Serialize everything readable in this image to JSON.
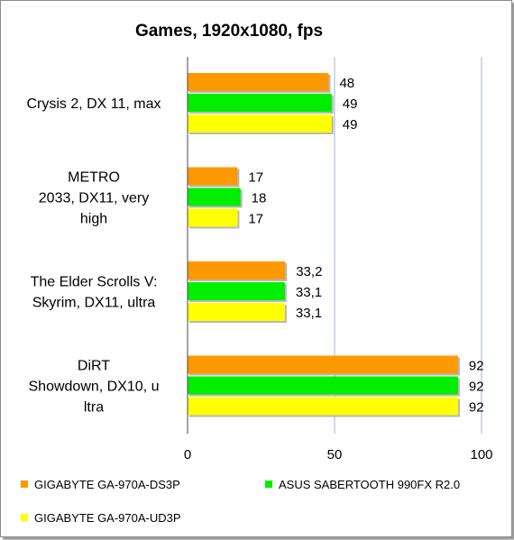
{
  "chart_data": {
    "type": "bar",
    "orientation": "horizontal",
    "title": "Games, 1920x1080, fps",
    "categories": [
      [
        "Crysis 2, DX 11, max"
      ],
      [
        "METRO",
        "2033, DX11, very",
        "high"
      ],
      [
        "The Elder Scrolls V:",
        "Skyrim, DX11, ultra"
      ],
      [
        "DiRT",
        "Showdown, DX10, u",
        "ltra"
      ]
    ],
    "series": [
      {
        "name": "GIGABYTE GA-970A-DS3P",
        "color": "#ff9900",
        "values": [
          48,
          17,
          33.2,
          92
        ],
        "labels": [
          "48",
          "17",
          "33,2",
          "92"
        ]
      },
      {
        "name": "ASUS SABERTOOTH 990FX R2.0",
        "color": "#00ee00",
        "values": [
          49,
          18,
          33.1,
          92
        ],
        "labels": [
          "49",
          "18",
          "33,1",
          "92"
        ]
      },
      {
        "name": "GIGABYTE GA-970A-UD3P",
        "color": "#ffff00",
        "values": [
          49,
          17,
          33.1,
          92
        ],
        "labels": [
          "49",
          "17",
          "33,1",
          "92"
        ]
      }
    ],
    "xlim": [
      0,
      100
    ],
    "xticks": [
      0,
      50,
      100
    ],
    "xtick_labels": [
      "0",
      "50",
      "100"
    ],
    "grid": true,
    "legend_position": "bottom"
  }
}
